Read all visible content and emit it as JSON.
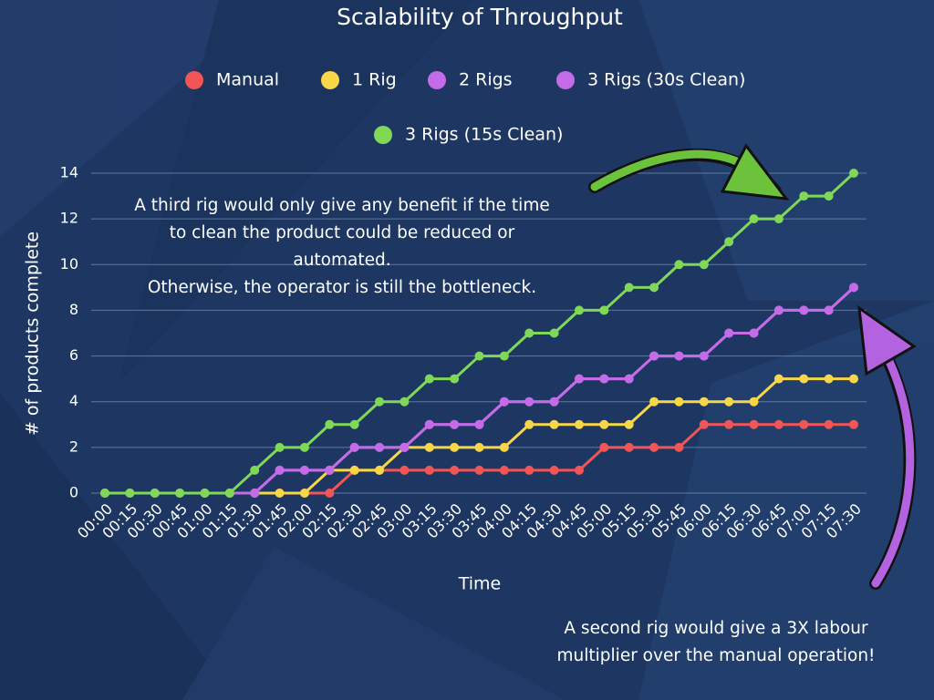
{
  "chart_data": {
    "type": "line",
    "title": "Scalability of Throughput",
    "x_label": "Time",
    "y_label": "# of products complete",
    "categories": [
      "00:00",
      "00:15",
      "00:30",
      "00:45",
      "01:00",
      "01:15",
      "01:30",
      "01:45",
      "02:00",
      "02:15",
      "02:30",
      "02:45",
      "03:00",
      "03:15",
      "03:30",
      "03:45",
      "04:00",
      "04:15",
      "04:30",
      "04:45",
      "05:00",
      "05:15",
      "05:30",
      "05:45",
      "06:00",
      "06:15",
      "06:30",
      "06:45",
      "07:00",
      "07:15",
      "07:30"
    ],
    "series": [
      {
        "name": "Manual",
        "color": "#f25555",
        "values": [
          0,
          0,
          0,
          0,
          0,
          0,
          0,
          0,
          0,
          0,
          1,
          1,
          1,
          1,
          1,
          1,
          1,
          1,
          1,
          1,
          2,
          2,
          2,
          2,
          3,
          3,
          3,
          3,
          3,
          3,
          3
        ]
      },
      {
        "name": "1 Rig",
        "color": "#f7d648",
        "values": [
          0,
          0,
          0,
          0,
          0,
          0,
          0,
          0,
          0,
          1,
          1,
          1,
          2,
          2,
          2,
          2,
          2,
          3,
          3,
          3,
          3,
          3,
          4,
          4,
          4,
          4,
          4,
          5,
          5,
          5,
          5
        ]
      },
      {
        "name": "2 Rigs",
        "color": "#c46ce8",
        "values": [
          0,
          0,
          0,
          0,
          0,
          0,
          0,
          1,
          1,
          1,
          2,
          2,
          2,
          3,
          3,
          3,
          4,
          4,
          4,
          5,
          5,
          5,
          6,
          6,
          6,
          7,
          7,
          8,
          8,
          8,
          9
        ]
      },
      {
        "name": "3 Rigs (30s Clean)",
        "color": "#c46ce8",
        "values": [
          0,
          0,
          0,
          0,
          0,
          0,
          0,
          1,
          1,
          1,
          2,
          2,
          2,
          3,
          3,
          3,
          4,
          4,
          4,
          5,
          5,
          5,
          6,
          6,
          6,
          7,
          7,
          8,
          8,
          8,
          9
        ]
      },
      {
        "name": "3 Rigs (15s Clean)",
        "color": "#7fd957",
        "values": [
          0,
          0,
          0,
          0,
          0,
          0,
          1,
          2,
          2,
          3,
          3,
          4,
          4,
          5,
          5,
          6,
          6,
          7,
          7,
          8,
          8,
          9,
          9,
          10,
          10,
          11,
          12,
          12,
          13,
          13,
          14
        ]
      }
    ],
    "ylim": [
      0,
      14
    ],
    "yticks": [
      0,
      2,
      4,
      6,
      8,
      10,
      12,
      14
    ],
    "grid": true,
    "annotations": [
      {
        "lines": [
          "A third rig would only give any benefit if the time",
          "to clean the product could be reduced or",
          "automated.",
          "Otherwise, the operator is still the bottleneck."
        ]
      },
      {
        "lines": [
          "A second rig would give a 3X labour",
          "multiplier over the manual operation!"
        ]
      }
    ]
  }
}
